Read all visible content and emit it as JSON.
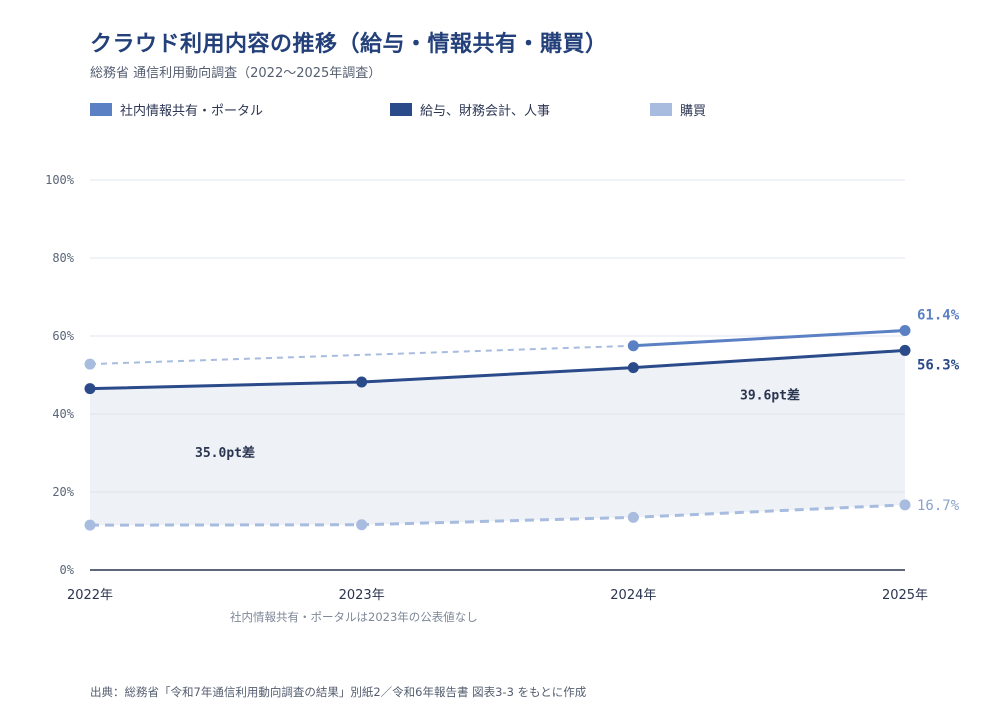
{
  "title": "クラウド利用内容の推移（給与・情報共有・購買）",
  "subtitle": "総務省 通信利用動向調査（2022〜2025年調査）",
  "source": "出典：総務省「令和7年通信利用動向調査の結果」別紙2／令和6年報告書 図表3-3 をもとに作成",
  "colors": {
    "portal": "#5b80c4",
    "payroll": "#2a4a8a",
    "purchasing": "#a7bcdf",
    "gap_fill": "#eef1f6",
    "grid": "#dfe4ec",
    "axis": "#2a3550",
    "tick": "#5a6578"
  },
  "legend": [
    {
      "label": "社内情報共有・ポータル",
      "color": "#5b80c4"
    },
    {
      "label": "給与、財務会計、人事",
      "color": "#2a4a8a"
    },
    {
      "label": "購買",
      "color": "#a7bcdf"
    }
  ],
  "chart_data": {
    "type": "line",
    "categories": [
      "2022年",
      "2023年",
      "2024年",
      "2025年"
    ],
    "ylim": [
      0,
      100
    ],
    "yticks": [
      "0%",
      "20%",
      "40%",
      "60%",
      "80%",
      "100%"
    ],
    "ytick_values": [
      0,
      20,
      40,
      60,
      80,
      100
    ],
    "series": [
      {
        "name": "社内情報共有・ポータル",
        "key": "portal",
        "values": [
          52.8,
          null,
          57.5,
          61.4
        ],
        "end_label": "61.4%",
        "dashed_gap": true
      },
      {
        "name": "給与、財務会計、人事",
        "key": "payroll",
        "values": [
          46.5,
          48.2,
          51.9,
          56.3
        ],
        "end_label": "56.3%"
      },
      {
        "name": "購買",
        "key": "purchasing",
        "values": [
          11.5,
          11.6,
          13.5,
          16.7
        ],
        "end_label": "16.7%",
        "dashed": true
      }
    ],
    "annotations": [
      {
        "text": "35.0pt差",
        "category": 0
      },
      {
        "text": "39.6pt差",
        "category": 3
      }
    ],
    "note": "社内情報共有・ポータルは2023年の公表値なし"
  }
}
